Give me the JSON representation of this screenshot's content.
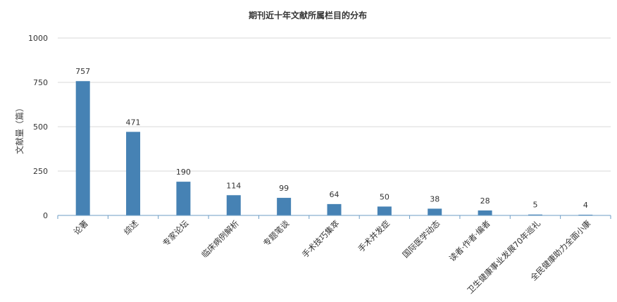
{
  "chart_data": {
    "type": "bar",
    "title": "期刊近十年文献所属栏目的分布",
    "xlabel": "",
    "ylabel": "文献量（篇）",
    "ylim": [
      0,
      1000
    ],
    "yticks": [
      0,
      250,
      500,
      750,
      1000
    ],
    "grid": true,
    "categories": [
      "论著",
      "综述",
      "专家论坛",
      "临床病例解析",
      "专题笔谈",
      "手术技巧集萃",
      "手术并发症",
      "国际医学动态",
      "读者·作者·编者",
      "卫生健康事业发展70年巡礼",
      "全民健康助力全面小康"
    ],
    "values": [
      757,
      471,
      190,
      114,
      99,
      64,
      50,
      38,
      28,
      5,
      4
    ],
    "bar_color": "#4682b4"
  }
}
